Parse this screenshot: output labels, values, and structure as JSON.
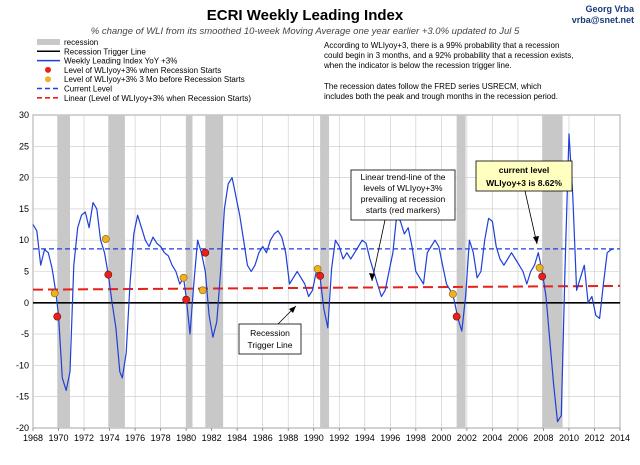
{
  "chart_data": {
    "type": "line",
    "title": "ECRI Weekly Leading Index",
    "subtitle": "% change of WLI from its smoothed 10-week Moving Average one year earlier +3.0% updated to Jul 5",
    "credit": [
      "Georg Vrba",
      "vrba@snet.net"
    ],
    "notes": [
      "According to WLIyoy+3, there is a 99% probability that a recession",
      "could begin in 3 months, and a 92% probability that a recession exists,",
      "when the indicator is below the recession trigger line.",
      "",
      "The recession dates follow the FRED series USRECM, which",
      "includes both the peak and trough months in the recession period."
    ],
    "legend": [
      {
        "label": "recession",
        "kind": "band",
        "color": "#c8c8c8"
      },
      {
        "label": "Recession Trigger Line",
        "kind": "line",
        "color": "#000000"
      },
      {
        "label": "Weekly Leading Index YoY  +3%",
        "kind": "line",
        "color": "#1f3fd8"
      },
      {
        "label": "Level of WLIyoy+3% when Recession Starts",
        "kind": "marker",
        "color": "#e8201a"
      },
      {
        "label": "Level of WLIyoy+3% 3 Mo before Recession Starts",
        "kind": "marker",
        "color": "#f0b020"
      },
      {
        "label": "Current Level",
        "kind": "dashline",
        "color": "#1f3fd8"
      },
      {
        "label": "Linear (Level of WLIyoy+3% when Recession Starts)",
        "kind": "dashline",
        "color": "#e8201a"
      }
    ],
    "xlim": [
      1968,
      2014
    ],
    "ylim": [
      -20,
      30
    ],
    "xticks": [
      "1968",
      "1970",
      "1972",
      "1974",
      "1976",
      "1978",
      "1980",
      "1982",
      "1984",
      "1986",
      "1988",
      "1990",
      "1992",
      "1994",
      "1996",
      "1998",
      "2000",
      "2002",
      "2004",
      "2006",
      "2008",
      "2010",
      "2012",
      "2014"
    ],
    "yticks": [
      "30",
      "25",
      "20",
      "15",
      "10",
      "5",
      "0",
      "-5",
      "-10",
      "-15",
      "-20"
    ],
    "recessions": [
      [
        1969.9,
        1970.9
      ],
      [
        1973.9,
        1975.2
      ],
      [
        1980.0,
        1980.5
      ],
      [
        1981.5,
        1982.9
      ],
      [
        1990.5,
        1991.2
      ],
      [
        2001.2,
        2001.9
      ],
      [
        2007.9,
        2009.5
      ]
    ],
    "trigger_level": 0,
    "current_level": 8.62,
    "trend_line": {
      "x": [
        1968,
        2014
      ],
      "y": [
        2.1,
        2.7
      ]
    },
    "red_markers": {
      "x": [
        1969.9,
        1973.9,
        1980.0,
        1981.5,
        1990.5,
        2001.2,
        2007.9
      ],
      "y": [
        -2.2,
        4.5,
        0.5,
        8.0,
        4.3,
        -2.2,
        4.2
      ]
    },
    "orange_markers": {
      "x": [
        1969.7,
        1973.7,
        1979.8,
        1981.3,
        1990.3,
        2000.9,
        2007.7
      ],
      "y": [
        1.5,
        10.2,
        4.0,
        2.0,
        5.4,
        1.4,
        5.6
      ]
    },
    "series": [
      {
        "name": "Weekly Leading Index YoY  +3%",
        "color": "#1f3fd8",
        "x": [
          1968.0,
          1968.3,
          1968.6,
          1968.9,
          1969.2,
          1969.5,
          1969.8,
          1970.0,
          1970.3,
          1970.6,
          1970.9,
          1971.2,
          1971.5,
          1971.8,
          1972.1,
          1972.4,
          1972.7,
          1973.0,
          1973.3,
          1973.6,
          1973.9,
          1974.2,
          1974.5,
          1974.8,
          1975.0,
          1975.3,
          1975.6,
          1975.9,
          1976.2,
          1976.5,
          1976.8,
          1977.1,
          1977.4,
          1977.7,
          1978.0,
          1978.3,
          1978.6,
          1978.9,
          1979.2,
          1979.5,
          1979.8,
          1980.0,
          1980.3,
          1980.6,
          1980.9,
          1981.2,
          1981.5,
          1981.8,
          1982.1,
          1982.4,
          1982.7,
          1983.0,
          1983.3,
          1983.6,
          1983.9,
          1984.2,
          1984.5,
          1984.8,
          1985.1,
          1985.4,
          1985.7,
          1986.0,
          1986.3,
          1986.6,
          1986.9,
          1987.2,
          1987.5,
          1987.8,
          1988.1,
          1988.4,
          1988.7,
          1989.0,
          1989.3,
          1989.6,
          1989.9,
          1990.2,
          1990.5,
          1990.8,
          1991.1,
          1991.4,
          1991.7,
          1992.0,
          1992.3,
          1992.6,
          1992.9,
          1993.2,
          1993.5,
          1993.8,
          1994.1,
          1994.4,
          1994.7,
          1995.0,
          1995.3,
          1995.6,
          1995.9,
          1996.2,
          1996.5,
          1996.8,
          1997.1,
          1997.4,
          1997.7,
          1998.0,
          1998.3,
          1998.6,
          1998.9,
          1999.2,
          1999.5,
          1999.8,
          2000.1,
          2000.4,
          2000.7,
          2001.0,
          2001.3,
          2001.6,
          2001.9,
          2002.2,
          2002.5,
          2002.8,
          2003.1,
          2003.4,
          2003.7,
          2004.0,
          2004.3,
          2004.6,
          2004.9,
          2005.2,
          2005.5,
          2005.8,
          2006.1,
          2006.4,
          2006.7,
          2007.0,
          2007.3,
          2007.6,
          2007.9,
          2008.2,
          2008.5,
          2008.8,
          2009.1,
          2009.4,
          2009.7,
          2010.0,
          2010.3,
          2010.6,
          2010.9,
          2011.2,
          2011.5,
          2011.8,
          2012.1,
          2012.4,
          2012.7,
          2013.0,
          2013.3,
          2013.5
        ],
        "values": [
          12.5,
          11.5,
          6.0,
          8.5,
          8.0,
          5.5,
          1.5,
          -2.0,
          -12.0,
          -14.0,
          -11.0,
          6.0,
          12.0,
          14.0,
          14.5,
          12.0,
          16.0,
          15.0,
          10.0,
          8.0,
          4.5,
          0.0,
          -4.0,
          -11.0,
          -12.0,
          -8.0,
          3.0,
          11.0,
          14.0,
          12.0,
          10.0,
          9.0,
          10.5,
          9.5,
          9.0,
          8.0,
          7.5,
          6.0,
          5.0,
          3.0,
          4.0,
          1.0,
          -5.0,
          3.0,
          10.0,
          8.0,
          5.0,
          -2.0,
          -5.5,
          -3.0,
          5.0,
          15.0,
          19.0,
          20.0,
          17.0,
          14.0,
          10.0,
          6.0,
          5.0,
          6.0,
          8.0,
          9.0,
          8.0,
          10.0,
          11.0,
          11.5,
          10.5,
          8.0,
          3.0,
          4.0,
          5.0,
          4.0,
          3.0,
          1.0,
          2.0,
          5.0,
          4.0,
          -1.0,
          -4.0,
          5.5,
          10.0,
          9.0,
          7.0,
          8.0,
          7.0,
          8.0,
          9.0,
          10.0,
          9.5,
          7.0,
          5.0,
          3.0,
          1.0,
          2.0,
          5.0,
          8.0,
          14.0,
          13.0,
          11.0,
          12.0,
          9.0,
          5.0,
          4.0,
          3.0,
          8.0,
          9.0,
          10.0,
          9.0,
          6.0,
          3.0,
          2.0,
          0.5,
          -2.5,
          -4.5,
          1.0,
          10.0,
          8.0,
          4.0,
          5.0,
          10.0,
          13.5,
          13.0,
          9.0,
          7.0,
          6.0,
          7.0,
          8.0,
          7.0,
          6.0,
          5.0,
          3.0,
          5.0,
          6.0,
          8.0,
          5.0,
          1.0,
          -6.0,
          -13.0,
          -19.0,
          -18.0,
          6.0,
          27.0,
          17.0,
          2.0,
          4.0,
          6.0,
          0.0,
          1.0,
          -2.0,
          -2.5,
          3.0,
          8.0,
          8.5,
          8.6
        ]
      }
    ],
    "annotations": [
      {
        "id": "trend-note",
        "lines": [
          "Linear trend-line of the",
          "levels of WLIyoy+3%",
          "prevailing at recession",
          "starts (red markers)"
        ]
      },
      {
        "id": "trigger-note",
        "lines": [
          "Recession",
          "Trigger Line"
        ]
      },
      {
        "id": "current-note",
        "lines": [
          "current level",
          "WLIyoy+3 is 8.62%"
        ]
      }
    ]
  }
}
